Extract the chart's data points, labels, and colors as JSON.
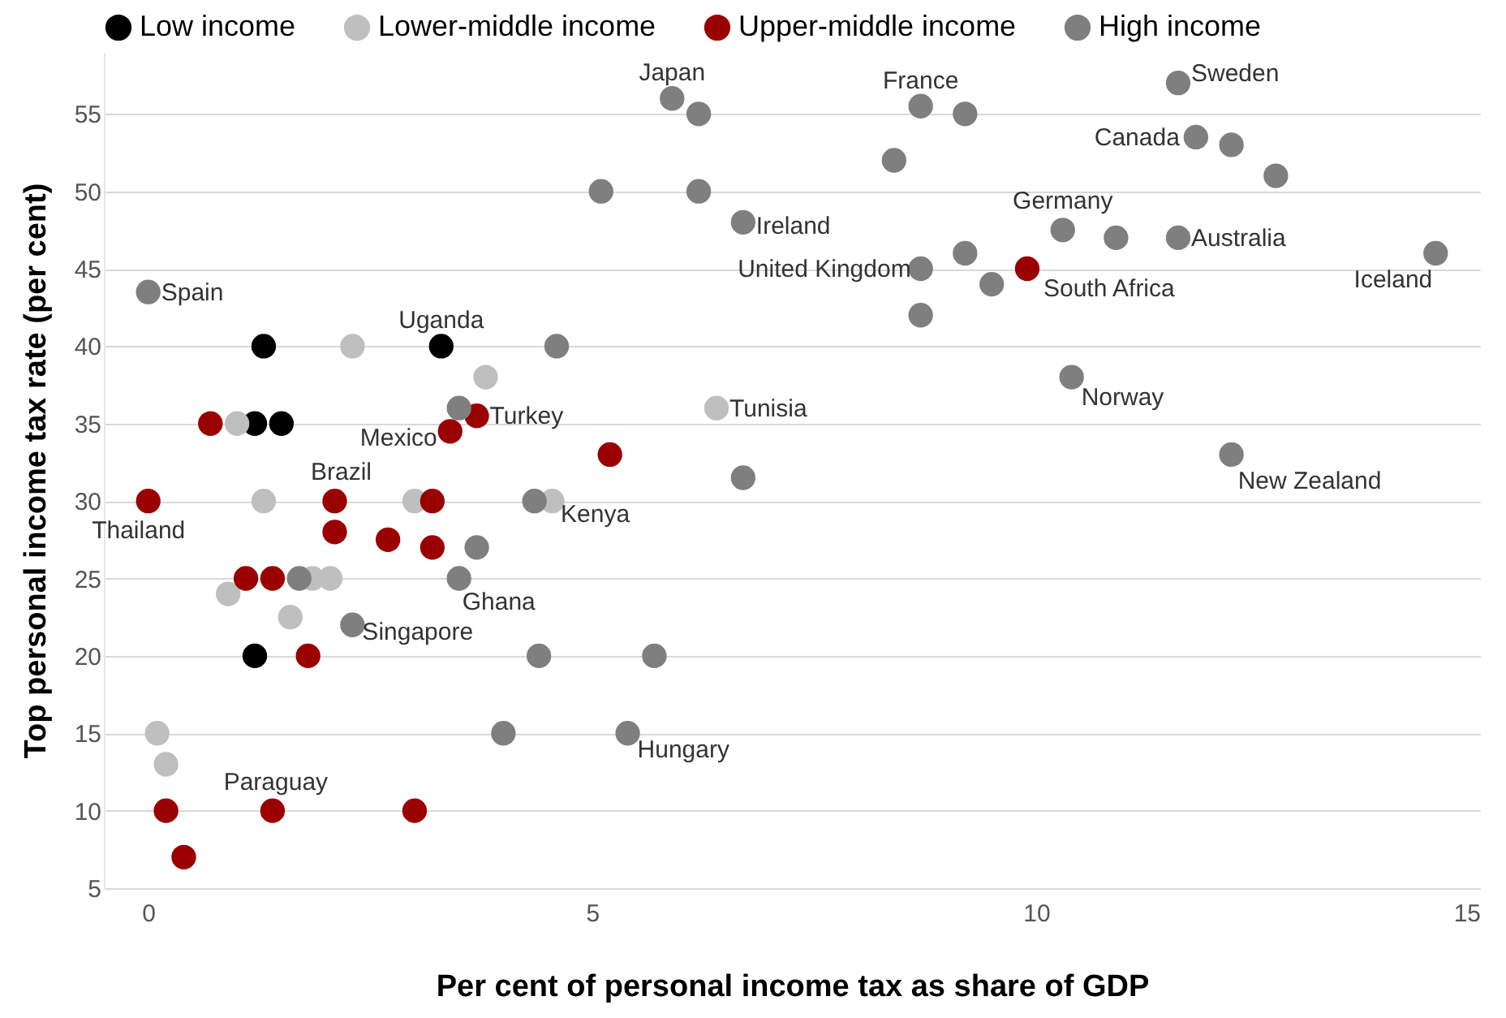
{
  "chart_data": {
    "type": "scatter",
    "xlabel": "Per cent of personal income tax as share of GDP",
    "ylabel": "Top personal income tax rate (per cent)",
    "xlim": [
      -0.5,
      15
    ],
    "xticks": [
      0,
      5,
      10,
      15
    ],
    "ylim": [
      5,
      59
    ],
    "yticks": [
      5,
      10,
      15,
      20,
      25,
      30,
      35,
      40,
      45,
      50,
      55
    ],
    "grid": "y",
    "legend": "top",
    "marker": "circle",
    "series": [
      {
        "name": "Low income",
        "color": "#000000",
        "x": [
          1.3,
          1.2,
          1.5,
          3.3,
          1.2
        ],
        "values": [
          40,
          35,
          35,
          40,
          20
        ]
      },
      {
        "name": "Lower-middle income",
        "color": "#bfbfbf",
        "x": [
          2.3,
          1.0,
          3.8,
          1.3,
          3.0,
          4.55,
          0.9,
          1.85,
          2.05,
          1.6,
          0.1,
          0.2,
          6.4
        ],
        "values": [
          40,
          35,
          38,
          30,
          30,
          30,
          24,
          25,
          25,
          22.5,
          15,
          13,
          36
        ]
      },
      {
        "name": "Upper-middle income",
        "color": "#9b0000",
        "x": [
          0.7,
          3.4,
          3.7,
          5.2,
          0,
          2.1,
          2.1,
          3.2,
          2.7,
          3.2,
          1.1,
          1.4,
          1.8,
          0.2,
          1.4,
          3.0,
          0.4,
          9.9
        ],
        "values": [
          35,
          34.5,
          35.5,
          33,
          30,
          30,
          28,
          30,
          27.5,
          27,
          25,
          25,
          20,
          10,
          10,
          10,
          7,
          45
        ]
      },
      {
        "name": "High income",
        "color": "#7f7f7f",
        "x": [
          0,
          5.9,
          6.2,
          5.1,
          6.2,
          6.7,
          4.6,
          3.5,
          6.7,
          1.7,
          3.5,
          3.7,
          2.3,
          4.4,
          5.7,
          4.0,
          5.4,
          4.35,
          8.7,
          9.2,
          8.4,
          8.7,
          9.2,
          9.5,
          8.7,
          10.3,
          10.9,
          11.6,
          11.6,
          11.8,
          12.2,
          12.7,
          14.5,
          10.4,
          12.2
        ],
        "values": [
          43.5,
          56,
          55,
          50,
          50,
          48,
          40,
          36,
          31.5,
          25,
          25,
          27,
          22,
          20,
          20,
          15,
          15,
          30,
          55.5,
          55,
          52,
          45,
          46,
          44,
          42,
          47.5,
          47,
          47,
          57,
          53.5,
          53,
          51,
          46,
          38,
          33
        ]
      }
    ],
    "annotations": [
      {
        "text": "Japan",
        "x": 5.9,
        "y": 56
      },
      {
        "text": "France",
        "x": 8.7,
        "y": 55.5
      },
      {
        "text": "Sweden",
        "x": 11.6,
        "y": 57
      },
      {
        "text": "Canada",
        "x": 11.8,
        "y": 53.5
      },
      {
        "text": "Ireland",
        "x": 6.7,
        "y": 48
      },
      {
        "text": "Germany",
        "x": 10.3,
        "y": 47.5
      },
      {
        "text": "Australia",
        "x": 11.6,
        "y": 47
      },
      {
        "text": "United Kingdom",
        "x": 8.7,
        "y": 45
      },
      {
        "text": "South Africa",
        "x": 9.9,
        "y": 45
      },
      {
        "text": "Iceland",
        "x": 14.5,
        "y": 46
      },
      {
        "text": "Spain",
        "x": 0,
        "y": 43.5
      },
      {
        "text": "Uganda",
        "x": 3.3,
        "y": 40
      },
      {
        "text": "Tunisia",
        "x": 6.4,
        "y": 36
      },
      {
        "text": "Norway",
        "x": 10.4,
        "y": 38
      },
      {
        "text": "Turkey",
        "x": 3.7,
        "y": 35.5
      },
      {
        "text": "Mexico",
        "x": 3.4,
        "y": 34.5
      },
      {
        "text": "Brazil",
        "x": 2.1,
        "y": 30
      },
      {
        "text": "Kenya",
        "x": 4.5,
        "y": 30
      },
      {
        "text": "Thailand",
        "x": 0,
        "y": 30
      },
      {
        "text": "New Zealand",
        "x": 12.2,
        "y": 33
      },
      {
        "text": "Ghana",
        "x": 3.5,
        "y": 25
      },
      {
        "text": "Singapore",
        "x": 2.3,
        "y": 22
      },
      {
        "text": "Hungary",
        "x": 5.4,
        "y": 15
      },
      {
        "text": "Paraguay",
        "x": 1.4,
        "y": 10
      }
    ]
  }
}
